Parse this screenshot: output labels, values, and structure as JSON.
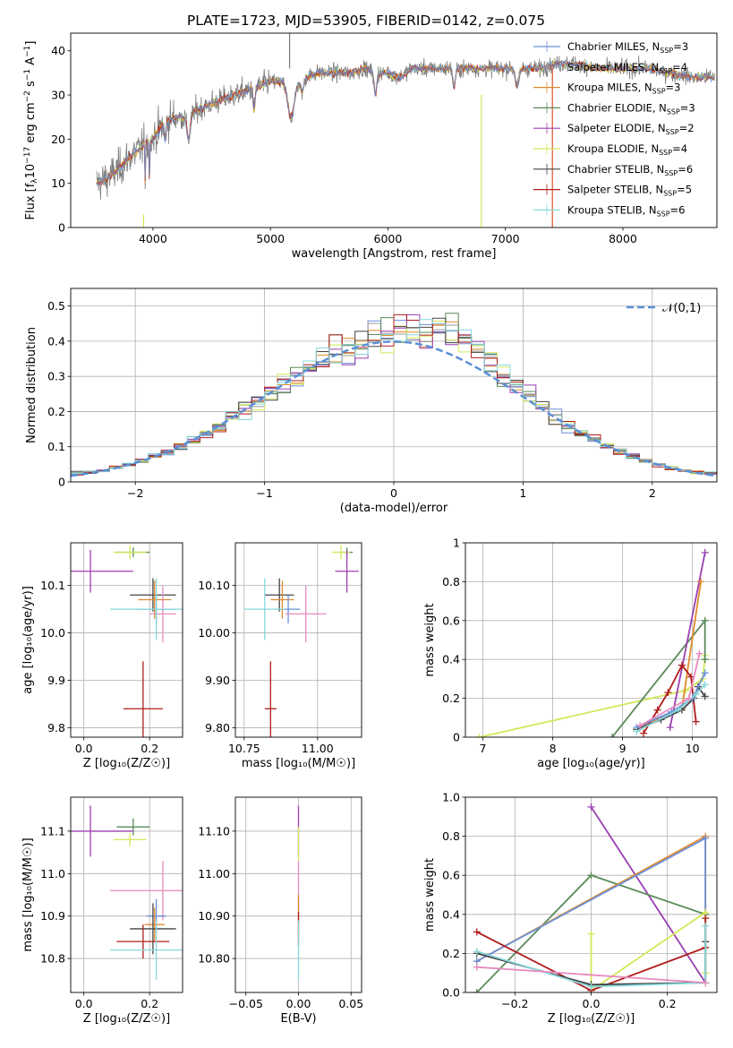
{
  "colors": {
    "Chabrier MILES": "#6a8fd8",
    "Salpeter MILES": "#9b9b9b",
    "Kroupa MILES": "#e08a2c",
    "Chabrier ELODIE": "#5a8a5a",
    "Salpeter ELODIE": "#9a3fb0",
    "Kroupa ELODIE": "#d4e85a",
    "Chabrier STELIB": "#444444",
    "Salpeter STELIB": "#b01c1c",
    "Kroupa STELIB": "#86d8dc",
    "extra": "#e88ac0",
    "normal": "#5b8fd6"
  },
  "chart_data": [
    {
      "id": "spectrum",
      "type": "line",
      "title": "PLATE=1723, MJD=53905, FIBERID=0142, z=0.075",
      "xlabel": "wavelength [Angstrom, rest frame]",
      "ylabel_parts": [
        "Flux [f",
        "λ",
        "10",
        "−17",
        " erg cm",
        "−2",
        " s",
        "−1",
        " A",
        "−1",
        "]"
      ],
      "xlim": [
        3300,
        8800
      ],
      "ylim": [
        0,
        44
      ],
      "xticks": [
        4000,
        5000,
        6000,
        7000,
        8000
      ],
      "yticks": [
        0,
        10,
        20,
        30,
        40
      ],
      "data_start": 3520,
      "data_end": 8780,
      "envelope": [
        [
          3520,
          10
        ],
        [
          3600,
          11
        ],
        [
          3700,
          13
        ],
        [
          3800,
          16
        ],
        [
          3900,
          18
        ],
        [
          4000,
          20
        ],
        [
          4100,
          24
        ],
        [
          4200,
          25
        ],
        [
          4300,
          25
        ],
        [
          4400,
          27
        ],
        [
          4500,
          28
        ],
        [
          4600,
          29
        ],
        [
          4700,
          30
        ],
        [
          4800,
          31
        ],
        [
          4900,
          32
        ],
        [
          5000,
          33
        ],
        [
          5100,
          33
        ],
        [
          5200,
          33
        ],
        [
          5300,
          34
        ],
        [
          5400,
          35
        ],
        [
          5500,
          35
        ],
        [
          5600,
          35
        ],
        [
          5700,
          35
        ],
        [
          5800,
          36
        ],
        [
          5900,
          35
        ],
        [
          6000,
          35
        ],
        [
          6100,
          34
        ],
        [
          6200,
          36
        ],
        [
          6300,
          36
        ],
        [
          6400,
          36
        ],
        [
          6500,
          36
        ],
        [
          6600,
          36
        ],
        [
          6700,
          36
        ],
        [
          6800,
          36
        ],
        [
          6900,
          36
        ],
        [
          7000,
          36
        ],
        [
          7100,
          36
        ],
        [
          7200,
          36
        ],
        [
          7300,
          36
        ],
        [
          7400,
          37
        ],
        [
          7500,
          37
        ],
        [
          7600,
          37
        ],
        [
          7800,
          36
        ],
        [
          8000,
          36
        ],
        [
          8200,
          36
        ],
        [
          8400,
          35
        ],
        [
          8600,
          34
        ],
        [
          8780,
          34
        ]
      ],
      "dips": [
        [
          3934,
          8,
          3
        ],
        [
          3969,
          8,
          3
        ],
        [
          4102,
          4,
          12
        ],
        [
          4304,
          5,
          20
        ],
        [
          4861,
          5,
          12
        ],
        [
          5175,
          8,
          40
        ],
        [
          5270,
          3,
          20
        ],
        [
          5893,
          5,
          15
        ],
        [
          6563,
          4,
          15
        ],
        [
          7100,
          4,
          20
        ]
      ],
      "spikes": [
        {
          "x": 3920,
          "y1": 0,
          "y2": 3
        },
        {
          "x": 5163,
          "y1": 36,
          "y2": 47
        },
        {
          "x": 6795,
          "y1": 0,
          "y2": 30
        },
        {
          "x": 7400,
          "y1": 0,
          "y2": 36
        }
      ],
      "legend": [
        {
          "name": "Chabrier MILES, N",
          "sub": "SSP",
          "suffix": "=3"
        },
        {
          "name": "Salpeter MILES, N",
          "sub": "SSP",
          "suffix": "=4"
        },
        {
          "name": "Kroupa MILES, N",
          "sub": "SSP",
          "suffix": "=3"
        },
        {
          "name": "Chabrier ELODIE, N",
          "sub": "SSP",
          "suffix": "=3"
        },
        {
          "name": "Salpeter ELODIE, N",
          "sub": "SSP",
          "suffix": "=2"
        },
        {
          "name": "Kroupa ELODIE, N",
          "sub": "SSP",
          "suffix": "=4"
        },
        {
          "name": "Chabrier STELIB, N",
          "sub": "SSP",
          "suffix": "=6"
        },
        {
          "name": "Salpeter STELIB, N",
          "sub": "SSP",
          "suffix": "=5"
        },
        {
          "name": "Kroupa STELIB, N",
          "sub": "SSP",
          "suffix": "=6"
        }
      ],
      "legend_placement": "top-right"
    },
    {
      "id": "residuals",
      "type": "histogram",
      "xlabel": "(data-model)/error",
      "ylabel": "Normed distribution",
      "xlim": [
        -2.5,
        2.5
      ],
      "ylim": [
        0,
        0.55
      ],
      "xticks": [
        -2,
        -1,
        0,
        1,
        2
      ],
      "yticks": [
        0.0,
        0.1,
        0.2,
        0.3,
        0.4,
        0.5
      ],
      "grid": true,
      "bin_width": 0.1,
      "legend": "𝒩(0,1)",
      "legend_placement": "top-right"
    },
    {
      "id": "age_vs_Z",
      "type": "errorbar",
      "xlabel": "Z [log₁₀(Z/Z☉)]",
      "ylabel": "age  [log₁₀(age/yr)]",
      "xlim": [
        -0.04,
        0.3
      ],
      "ylim": [
        9.78,
        10.19
      ],
      "xticks": [
        0.0,
        0.2
      ],
      "yticks": [
        9.8,
        9.9,
        10.0,
        10.1
      ],
      "grid": true,
      "points": [
        {
          "m": "Chabrier ELODIE",
          "x": 0.15,
          "y": 10.17,
          "xe": 0.05,
          "ye": 0.01
        },
        {
          "m": "Kroupa ELODIE",
          "x": 0.14,
          "y": 10.17,
          "xe": 0.05,
          "ye": 0.015
        },
        {
          "m": "Salpeter ELODIE",
          "x": 0.02,
          "y": 10.13,
          "xe": 0.13,
          "ye": 0.045
        },
        {
          "m": "Chabrier STELIB",
          "x": 0.21,
          "y": 10.08,
          "xe": 0.07,
          "ye": 0.035
        },
        {
          "m": "Kroupa MILES",
          "x": 0.215,
          "y": 10.07,
          "xe": 0.05,
          "ye": 0.04
        },
        {
          "m": "Chabrier MILES",
          "x": 0.22,
          "y": 10.05,
          "xe": 0.06,
          "ye": 0.03
        },
        {
          "m": "extra",
          "x": 0.24,
          "y": 10.04,
          "xe": 0.04,
          "ye": 0.06
        },
        {
          "m": "Kroupa STELIB",
          "x": 0.22,
          "y": 10.05,
          "xe": 0.14,
          "ye": 0.065
        },
        {
          "m": "Salpeter STELIB",
          "x": 0.18,
          "y": 9.84,
          "xe": 0.06,
          "ye": 0.1
        }
      ]
    },
    {
      "id": "age_vs_mass",
      "type": "errorbar",
      "xlabel": "mass [log₁₀(M/M☉)]",
      "ylabel": "",
      "xlim": [
        10.72,
        11.15
      ],
      "ylim": [
        9.78,
        10.19
      ],
      "xticks": [
        10.75,
        11.0
      ],
      "yticks": [
        9.8,
        9.9,
        10.0,
        10.1
      ],
      "grid": true,
      "points": [
        {
          "m": "Chabrier ELODIE",
          "x": 11.1,
          "y": 10.17,
          "xe": 0.02,
          "ye": 0.01
        },
        {
          "m": "Kroupa ELODIE",
          "x": 11.08,
          "y": 10.17,
          "xe": 0.03,
          "ye": 0.015
        },
        {
          "m": "Salpeter ELODIE",
          "x": 11.1,
          "y": 10.13,
          "xe": 0.04,
          "ye": 0.045
        },
        {
          "m": "Chabrier STELIB",
          "x": 10.87,
          "y": 10.08,
          "xe": 0.05,
          "ye": 0.035
        },
        {
          "m": "Kroupa MILES",
          "x": 10.88,
          "y": 10.07,
          "xe": 0.04,
          "ye": 0.04
        },
        {
          "m": "Chabrier MILES",
          "x": 10.9,
          "y": 10.05,
          "xe": 0.04,
          "ye": 0.03
        },
        {
          "m": "extra",
          "x": 10.96,
          "y": 10.04,
          "xe": 0.07,
          "ye": 0.06
        },
        {
          "m": "Kroupa STELIB",
          "x": 10.82,
          "y": 10.05,
          "xe": 0.07,
          "ye": 0.065
        },
        {
          "m": "Salpeter STELIB",
          "x": 10.84,
          "y": 9.84,
          "xe": 0.02,
          "ye": 0.1
        }
      ]
    },
    {
      "id": "weight_vs_age",
      "type": "line",
      "xlabel": "age  [log₁₀(age/yr)]",
      "ylabel": "mass weight",
      "xlim": [
        6.75,
        10.35
      ],
      "ylim": [
        0,
        1.0
      ],
      "xticks": [
        7,
        8,
        9,
        10
      ],
      "yticks": [
        0.0,
        0.2,
        0.4,
        0.6,
        0.8,
        1.0
      ],
      "grid": true,
      "series": [
        {
          "m": "Kroupa ELODIE",
          "x": [
            6.95,
            9.9,
            10.15,
            10.18
          ],
          "y": [
            0.0,
            0.24,
            0.3,
            0.42
          ]
        },
        {
          "m": "Chabrier ELODIE",
          "x": [
            8.85,
            10.18,
            10.18
          ],
          "y": [
            0.0,
            0.6,
            0.4
          ]
        },
        {
          "m": "Salpeter ELODIE",
          "x": [
            9.68,
            10.18
          ],
          "y": [
            0.05,
            0.95
          ]
        },
        {
          "m": "Kroupa MILES",
          "x": [
            9.25,
            9.85,
            10.12
          ],
          "y": [
            0.05,
            0.15,
            0.8
          ]
        },
        {
          "m": "Salpeter STELIB",
          "x": [
            9.3,
            9.5,
            9.65,
            9.85,
            9.98,
            10.05
          ],
          "y": [
            0.02,
            0.14,
            0.23,
            0.37,
            0.31,
            0.08
          ]
        },
        {
          "m": "Chabrier STELIB",
          "x": [
            9.2,
            9.55,
            9.85,
            10.02,
            10.08,
            10.18
          ],
          "y": [
            0.04,
            0.09,
            0.14,
            0.2,
            0.26,
            0.21
          ]
        },
        {
          "m": "Chabrier MILES",
          "x": [
            9.2,
            9.7,
            10.0,
            10.18
          ],
          "y": [
            0.05,
            0.13,
            0.2,
            0.33
          ]
        },
        {
          "m": "Kroupa STELIB",
          "x": [
            9.2,
            9.8,
            10.05,
            10.18
          ],
          "y": [
            0.03,
            0.14,
            0.22,
            0.27
          ]
        },
        {
          "m": "extra",
          "x": [
            9.25,
            9.95,
            10.1
          ],
          "y": [
            0.06,
            0.2,
            0.43
          ]
        }
      ]
    },
    {
      "id": "mass_vs_Z",
      "type": "errorbar",
      "xlabel": "Z [log₁₀(Z/Z☉)]",
      "ylabel": "mass [log₁₀(M/M☉)]",
      "xlim": [
        -0.04,
        0.3
      ],
      "ylim": [
        10.72,
        11.18
      ],
      "xticks": [
        0.0,
        0.2
      ],
      "yticks": [
        10.8,
        10.9,
        11.0,
        11.1
      ],
      "grid": true,
      "points": [
        {
          "m": "Chabrier ELODIE",
          "x": 0.15,
          "y": 11.11,
          "xe": 0.05,
          "ye": 0.02
        },
        {
          "m": "Salpeter ELODIE",
          "x": 0.02,
          "y": 11.1,
          "xe": 0.13,
          "ye": 0.06
        },
        {
          "m": "Kroupa ELODIE",
          "x": 0.14,
          "y": 11.08,
          "xe": 0.05,
          "ye": 0.015
        },
        {
          "m": "extra",
          "x": 0.24,
          "y": 10.96,
          "xe": 0.16,
          "ye": 0.07
        },
        {
          "m": "Chabrier MILES",
          "x": 0.22,
          "y": 10.9,
          "xe": 0.03,
          "ye": 0.04
        },
        {
          "m": "Kroupa MILES",
          "x": 0.215,
          "y": 10.88,
          "xe": 0.03,
          "ye": 0.04
        },
        {
          "m": "Chabrier STELIB",
          "x": 0.21,
          "y": 10.87,
          "xe": 0.07,
          "ye": 0.06
        },
        {
          "m": "Salpeter STELIB",
          "x": 0.18,
          "y": 10.84,
          "xe": 0.08,
          "ye": 0.04
        },
        {
          "m": "Kroupa STELIB",
          "x": 0.22,
          "y": 10.82,
          "xe": 0.14,
          "ye": 0.07
        }
      ]
    },
    {
      "id": "mass_vs_ebv",
      "type": "errorbar",
      "xlabel": "E(B-V)",
      "ylabel": "",
      "xlim": [
        -0.06,
        0.06
      ],
      "ylim": [
        10.72,
        11.18
      ],
      "xticks": [
        -0.05,
        0.0,
        0.05
      ],
      "yticks": [
        10.8,
        10.9,
        11.0,
        11.1
      ],
      "grid": true,
      "points": [
        {
          "m": "Salpeter ELODIE",
          "x": 0.0,
          "y": 11.1,
          "xe": 0.0,
          "ye": 0.06
        },
        {
          "m": "Kroupa ELODIE",
          "x": 0.0,
          "y": 11.07,
          "xe": 0.0,
          "ye": 0.04
        },
        {
          "m": "extra",
          "x": 0.0,
          "y": 10.96,
          "xe": 0.0,
          "ye": 0.07
        },
        {
          "m": "Kroupa MILES",
          "x": 0.0,
          "y": 10.9,
          "xe": 0.0,
          "ye": 0.05
        },
        {
          "m": "Salpeter STELIB",
          "x": 0.0,
          "y": 10.87,
          "xe": 0.0,
          "ye": 0.04
        },
        {
          "m": "Kroupa STELIB",
          "x": 0.0,
          "y": 10.82,
          "xe": 0.0,
          "ye": 0.07
        }
      ]
    },
    {
      "id": "weight_vs_Z",
      "type": "line",
      "xlabel": "Z [log₁₀(Z/Z☉)]",
      "ylabel": "mass weight",
      "xlim": [
        -0.33,
        0.33
      ],
      "ylim": [
        0,
        1.0
      ],
      "xticks": [
        -0.2,
        0.0,
        0.2
      ],
      "yticks": [
        0.0,
        0.2,
        0.4,
        0.6,
        0.8,
        1.0
      ],
      "grid": true,
      "series": [
        {
          "m": "Salpeter ELODIE",
          "x": [
            0.0,
            0.3
          ],
          "y": [
            0.95,
            0.05
          ]
        },
        {
          "m": "Chabrier ELODIE",
          "x": [
            -0.3,
            0.0,
            0.3
          ],
          "y": [
            0.0,
            0.6,
            0.4
          ]
        },
        {
          "m": "Kroupa MILES",
          "x": [
            -0.3,
            0.3,
            0.3
          ],
          "y": [
            0.16,
            0.8,
            0.05
          ]
        },
        {
          "m": "Chabrier MILES",
          "x": [
            -0.3,
            0.3,
            0.3
          ],
          "y": [
            0.16,
            0.79,
            0.05
          ]
        },
        {
          "m": "Kroupa ELODIE",
          "x": [
            0.0,
            0.0,
            0.3,
            0.3
          ],
          "y": [
            0.3,
            0.01,
            0.41,
            0.1
          ]
        },
        {
          "m": "Salpeter STELIB",
          "x": [
            -0.3,
            0.0,
            0.3,
            0.3
          ],
          "y": [
            0.31,
            0.01,
            0.23,
            0.38
          ]
        },
        {
          "m": "Chabrier STELIB",
          "x": [
            -0.3,
            0.0,
            0.3,
            0.3
          ],
          "y": [
            0.2,
            0.04,
            0.05,
            0.26
          ]
        },
        {
          "m": "Kroupa STELIB",
          "x": [
            -0.3,
            0.0,
            0.3,
            0.3
          ],
          "y": [
            0.21,
            0.03,
            0.05,
            0.34
          ]
        },
        {
          "m": "extra",
          "x": [
            -0.3,
            0.3
          ],
          "y": [
            0.13,
            0.05
          ]
        }
      ]
    }
  ]
}
